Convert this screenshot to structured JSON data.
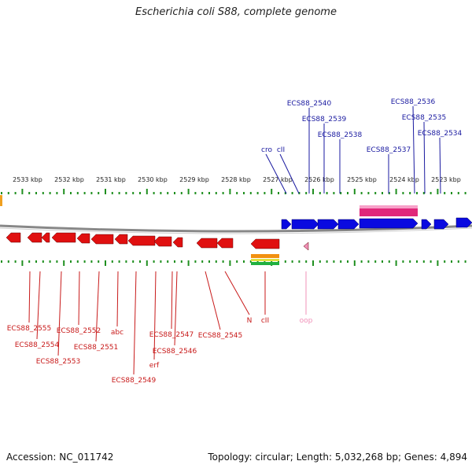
{
  "title": "Escherichia coli S88, complete genome",
  "footer": {
    "accession": "Accession: NC_011742",
    "stats": "Topology: circular; Length: 5,032,268 bp; Genes: 4,894"
  },
  "colors": {
    "forward": "#0a0ae0",
    "reverse": "#e01010",
    "pseudo": "#f090b8",
    "feature": "#e0287a",
    "tick": "#1f8f1f",
    "axis": "#888888",
    "label_forward": "#1a1aa0",
    "label_reverse": "#c81a1a"
  },
  "scale_labels": [
    "2533 kbp",
    "2532 kbp",
    "2531 kbp",
    "2530 kbp",
    "2529 kbp",
    "2528 kbp",
    "2527 kbp",
    "2526 kbp",
    "2525 kbp",
    "2524 kbp",
    "2523 kbp"
  ],
  "top_labels": [
    {
      "text": "ECS88_2540"
    },
    {
      "text": "ECS88_2539"
    },
    {
      "text": "ECS88_2538"
    },
    {
      "text": "ECS88_2537"
    },
    {
      "text": "ECS88_2536"
    },
    {
      "text": "ECS88_2535"
    },
    {
      "text": "ECS88_2534"
    },
    {
      "text": "cro"
    },
    {
      "text": "cII"
    }
  ],
  "bottom_labels": [
    {
      "text": "ECS88_2555"
    },
    {
      "text": "ECS88_2554"
    },
    {
      "text": "ECS88_2553"
    },
    {
      "text": "ECS88_2552"
    },
    {
      "text": "ECS88_2551"
    },
    {
      "text": "abc"
    },
    {
      "text": "ECS88_2549"
    },
    {
      "text": "erf"
    },
    {
      "text": "ECS88_2547"
    },
    {
      "text": "ECS88_2546"
    },
    {
      "text": "ECS88_2545"
    },
    {
      "text": "N"
    },
    {
      "text": "cII"
    },
    {
      "text": "oop"
    }
  ]
}
